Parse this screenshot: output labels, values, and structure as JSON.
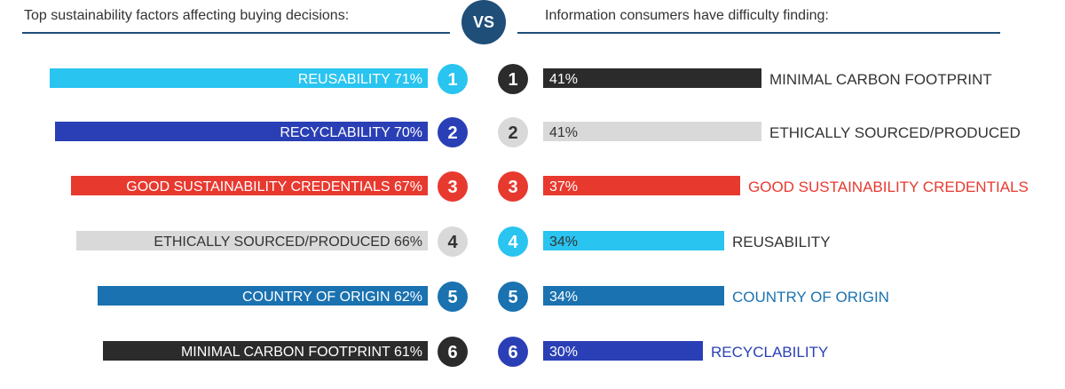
{
  "header": {
    "left_title": "Top sustainability factors affecting buying decisions:",
    "vs_label": "VS",
    "right_title": "Information consumers have difficulty finding:"
  },
  "colors": {
    "header_navy": "#1f4e79",
    "light_blue": "#29c4f0",
    "royal_blue": "#2a3fb5",
    "red": "#e8392f",
    "light_gray": "#d9d9d9",
    "steel_blue": "#1a72b0",
    "charcoal": "#2b2b2b"
  },
  "chart_data": [
    {
      "type": "bar",
      "orientation": "horizontal",
      "side": "left",
      "title": "Top sustainability factors affecting buying decisions:",
      "xlim": [
        0,
        100
      ],
      "unit": "%",
      "rows": [
        {
          "rank": "1",
          "label": "REUSABILITY 71%",
          "category": "REUSABILITY",
          "value": 71,
          "color": "#29c4f0",
          "text_color": "#ffffff"
        },
        {
          "rank": "2",
          "label": "RECYCLABILITY 70%",
          "category": "RECYCLABILITY",
          "value": 70,
          "color": "#2a3fb5",
          "text_color": "#ffffff"
        },
        {
          "rank": "3",
          "label": "GOOD SUSTAINABILITY CREDENTIALS  67%",
          "category": "GOOD SUSTAINABILITY CREDENTIALS",
          "value": 67,
          "color": "#e8392f",
          "text_color": "#ffffff"
        },
        {
          "rank": "4",
          "label": "ETHICALLY SOURCED/PRODUCED 66%",
          "category": "ETHICALLY SOURCED/PRODUCED",
          "value": 66,
          "color": "#d9d9d9",
          "text_color": "#333333"
        },
        {
          "rank": "5",
          "label": "COUNTRY OF ORIGIN 62%",
          "category": "COUNTRY OF ORIGIN",
          "value": 62,
          "color": "#1a72b0",
          "text_color": "#ffffff"
        },
        {
          "rank": "6",
          "label": "MINIMAL CARBON FOOTPRINT 61%",
          "category": "MINIMAL CARBON FOOTPRINT",
          "value": 61,
          "color": "#2b2b2b",
          "text_color": "#ffffff"
        }
      ]
    },
    {
      "type": "bar",
      "orientation": "horizontal",
      "side": "right",
      "title": "Information consumers have difficulty finding:",
      "xlim": [
        0,
        100
      ],
      "unit": "%",
      "rows": [
        {
          "rank": "1",
          "value_label": "41%",
          "value": 41,
          "category": "MINIMAL CARBON FOOTPRINT",
          "color": "#2b2b2b",
          "value_text_color": "#ffffff",
          "category_color": "#333333"
        },
        {
          "rank": "2",
          "value_label": "41%",
          "value": 41,
          "category": "ETHICALLY SOURCED/PRODUCED",
          "color": "#d9d9d9",
          "value_text_color": "#333333",
          "category_color": "#333333"
        },
        {
          "rank": "3",
          "value_label": "37%",
          "value": 37,
          "category": "GOOD SUSTAINABILITY CREDENTIALS",
          "color": "#e8392f",
          "value_text_color": "#ffffff",
          "category_color": "#e8392f"
        },
        {
          "rank": "4",
          "value_label": "34%",
          "value": 34,
          "category": "REUSABILITY",
          "color": "#29c4f0",
          "value_text_color": "#333333",
          "category_color": "#333333"
        },
        {
          "rank": "5",
          "value_label": "34%",
          "value": 34,
          "category": "COUNTRY OF ORIGIN",
          "color": "#1a72b0",
          "value_text_color": "#ffffff",
          "category_color": "#1a72b0"
        },
        {
          "rank": "6",
          "value_label": "30%",
          "value": 30,
          "category": "RECYCLABILITY",
          "color": "#2a3fb5",
          "value_text_color": "#ffffff",
          "category_color": "#2a3fb5"
        }
      ]
    }
  ]
}
